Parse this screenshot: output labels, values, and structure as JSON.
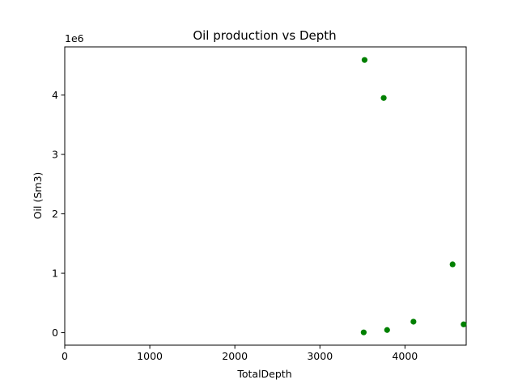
{
  "chart_data": {
    "type": "scatter",
    "title": "Oil production vs Depth",
    "xlabel": "TotalDepth",
    "ylabel": "Oil (Sm3)",
    "y_offset_text": "1e6",
    "xlim": [
      0,
      4720
    ],
    "ylim": [
      -210000,
      4810000
    ],
    "xticks": [
      0,
      1000,
      2000,
      3000,
      4000
    ],
    "yticks": [
      0,
      1000000,
      2000000,
      3000000,
      4000000
    ],
    "ytick_labels": [
      "0",
      "1",
      "2",
      "3",
      "4"
    ],
    "grid": false,
    "legend": "none",
    "marker_color": "#008000",
    "series": [
      {
        "x": [
          3525,
          3750,
          4560,
          4100,
          4690,
          3790,
          3515
        ],
        "y": [
          4590000,
          3950000,
          1150000,
          185000,
          140000,
          45000,
          5000
        ]
      }
    ]
  }
}
